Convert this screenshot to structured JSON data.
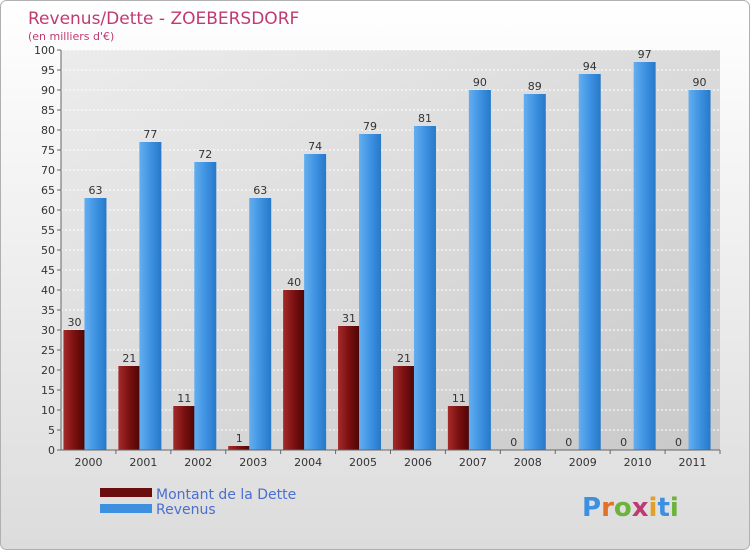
{
  "chart_data": {
    "type": "bar",
    "title": "Revenus/Dette - ZOEBERSDORF",
    "subtitle": "(en milliers d'€)",
    "categories": [
      "2000",
      "2001",
      "2002",
      "2003",
      "2004",
      "2005",
      "2006",
      "2007",
      "2008",
      "2009",
      "2010",
      "2011"
    ],
    "series": [
      {
        "name": "Montant de la Dette",
        "values": [
          30,
          21,
          11,
          1,
          40,
          31,
          21,
          11,
          0,
          0,
          0,
          0
        ],
        "color": "#6b0d0d"
      },
      {
        "name": "Revenus",
        "values": [
          63,
          77,
          72,
          63,
          74,
          79,
          81,
          90,
          89,
          94,
          97,
          90
        ],
        "color": "#3d8fe0"
      }
    ],
    "ylim": [
      0,
      100
    ],
    "ytick_step": 5,
    "grid": true,
    "legend": "bottom-left"
  },
  "logo": {
    "text": "Proxiti"
  }
}
